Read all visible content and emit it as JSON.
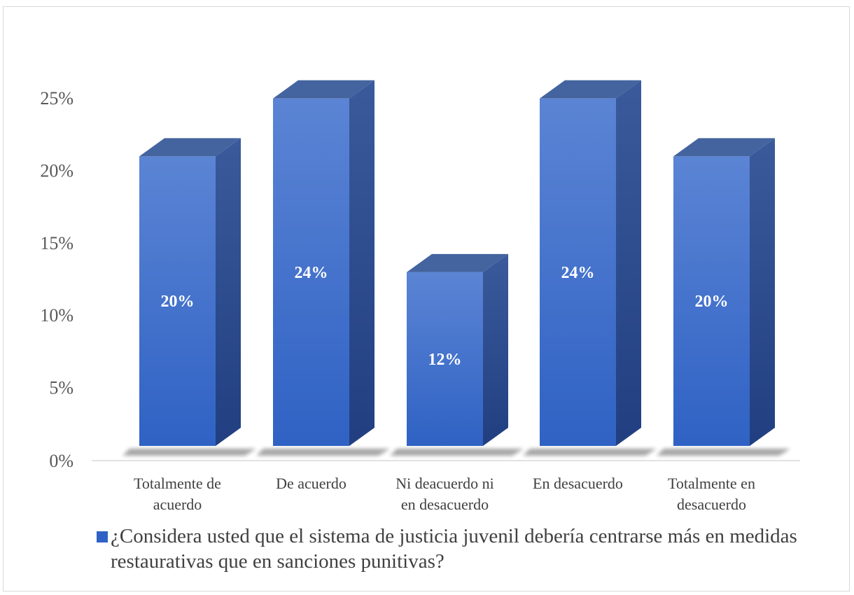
{
  "chart_data": {
    "type": "bar",
    "style": "3d-column",
    "categories": [
      [
        "Totalmente de",
        "acuerdo"
      ],
      [
        "De acuerdo"
      ],
      [
        "Ni deacuerdo ni",
        "en desacuerdo"
      ],
      [
        "En desacuerdo"
      ],
      [
        "Totalmente en",
        "desacuerdo"
      ]
    ],
    "series": [
      {
        "name": "¿Considera usted que el sistema de justicia juvenil debería centrarse más en medidas restaurativas que en sanciones punitivas?",
        "values": [
          0.2,
          0.24,
          0.12,
          0.24,
          0.2
        ],
        "data_labels": [
          "20%",
          "24%",
          "12%",
          "24%",
          "20%"
        ]
      }
    ],
    "y_ticks": [
      "0%",
      "5%",
      "10%",
      "15%",
      "20%",
      "25%"
    ],
    "ylim": [
      0,
      0.25
    ],
    "grid": false,
    "legend_position": "bottom",
    "colors": {
      "bar_front_top": "#5b84d4",
      "bar_front_bottom": "#2f62c4",
      "bar_side": "#2a4a8f",
      "bar_top": "#44649f",
      "axis": "#d9d9d9"
    }
  }
}
